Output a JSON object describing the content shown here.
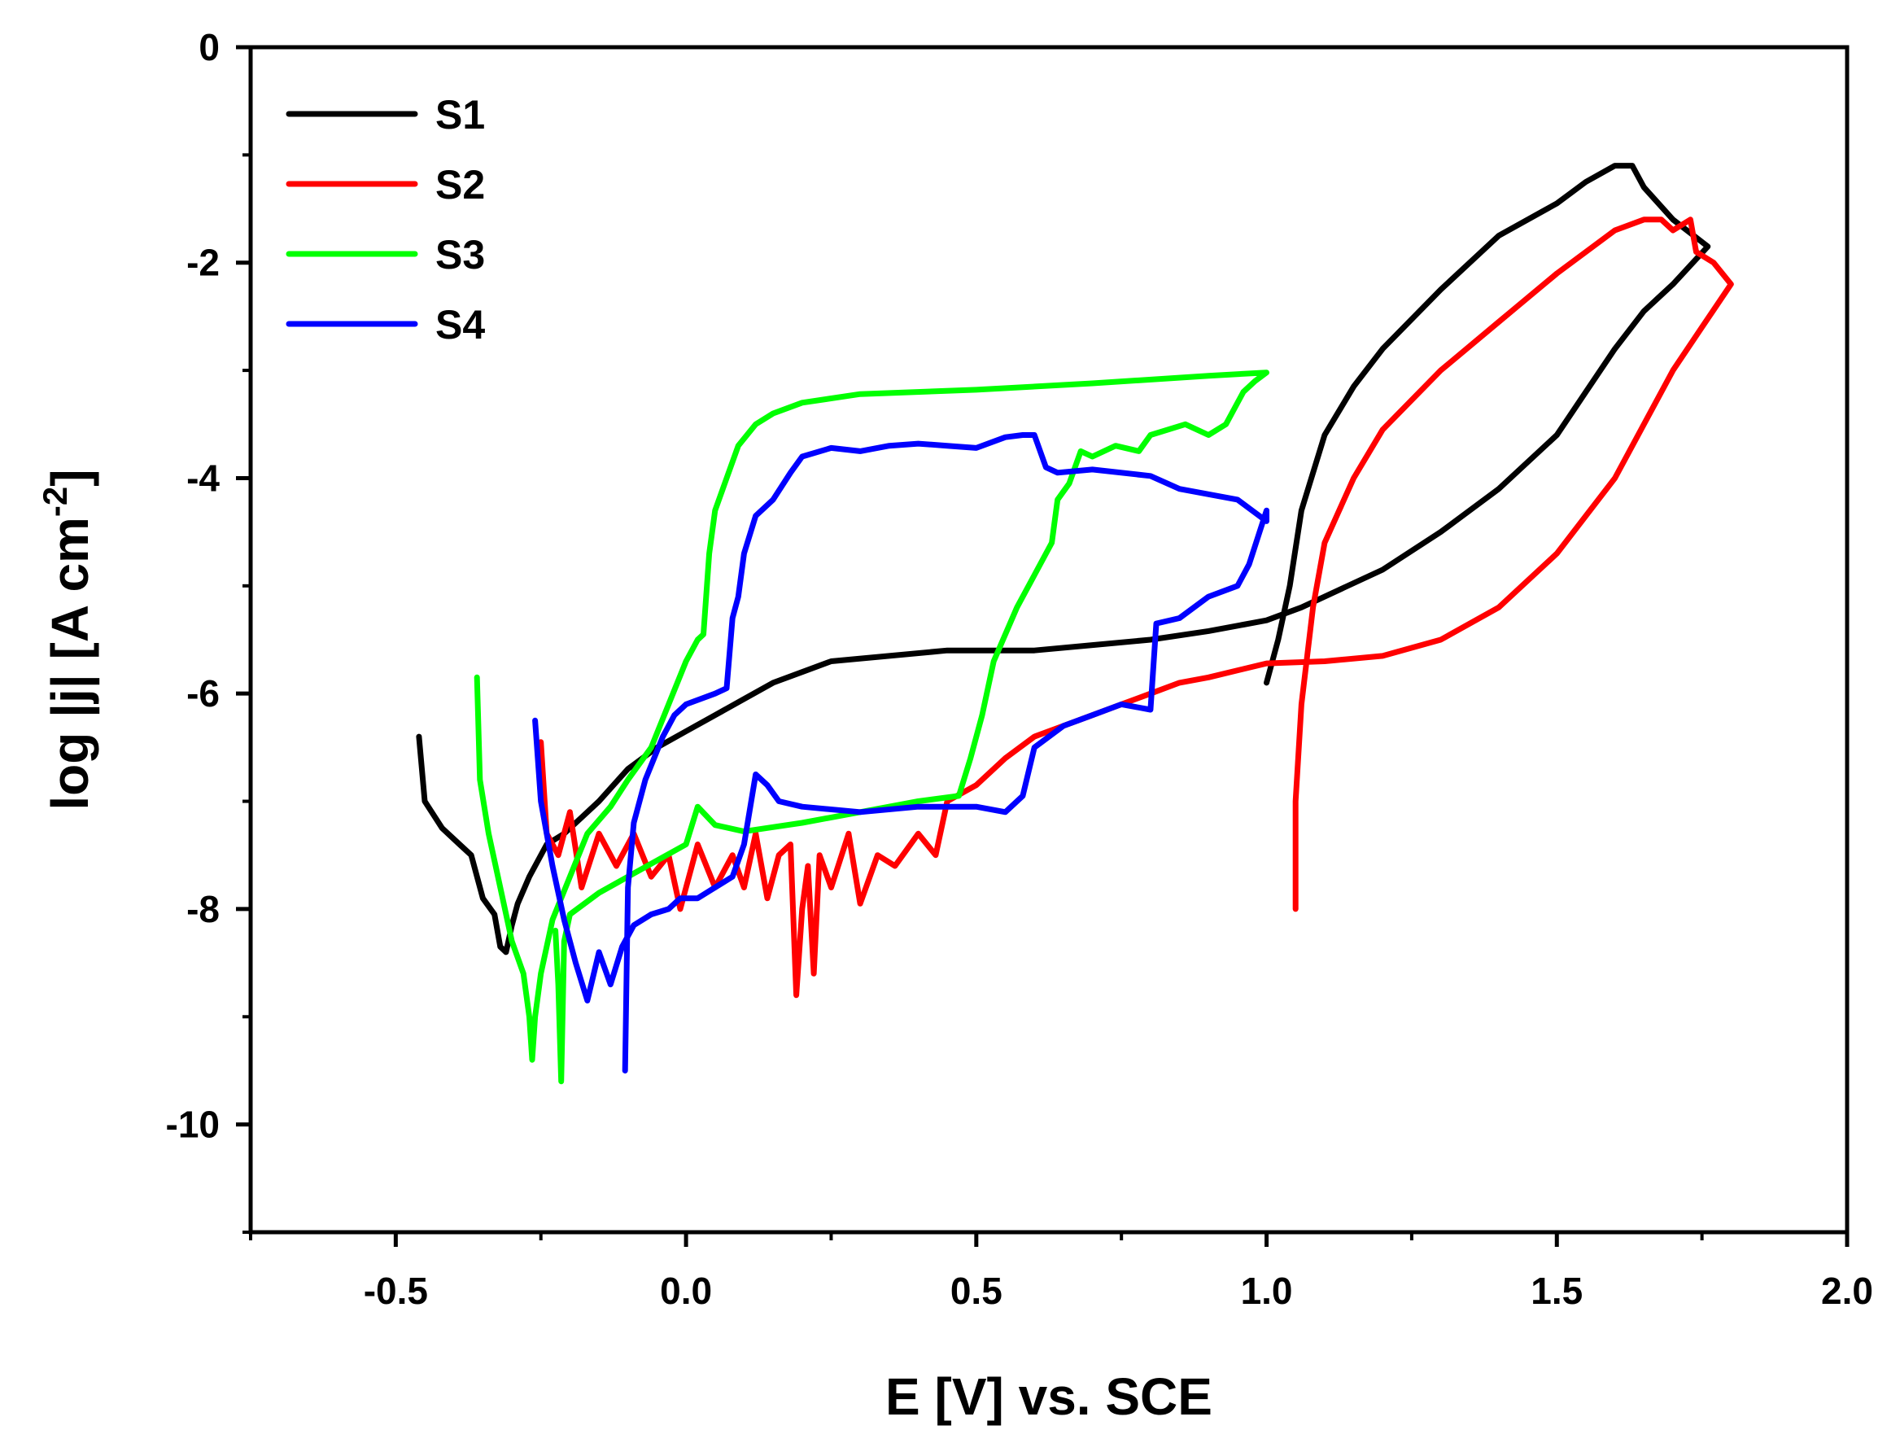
{
  "chart_data": {
    "type": "line",
    "title": "",
    "xlabel": "E [V] vs. SCE",
    "ylabel_main": "log |j| [A cm",
    "ylabel_sup": "-2",
    "ylabel_close": "]",
    "xlim": [
      -0.75,
      2.0
    ],
    "ylim": [
      -11,
      0
    ],
    "xticks": [
      -0.5,
      0.0,
      0.5,
      1.0,
      1.5,
      2.0
    ],
    "xtick_labels": [
      "-0.5",
      "0.0",
      "0.5",
      "1.0",
      "1.5",
      "2.0"
    ],
    "yticks": [
      0,
      -2,
      -4,
      -6,
      -8,
      -10
    ],
    "ytick_labels": [
      "0",
      "-2",
      "-4",
      "-6",
      "-8",
      "-10"
    ],
    "legend_position": "top-left",
    "series": [
      {
        "name": "S1",
        "color": "#000000",
        "points": [
          [
            -0.46,
            -6.4
          ],
          [
            -0.45,
            -7.0
          ],
          [
            -0.42,
            -7.25
          ],
          [
            -0.39,
            -7.4
          ],
          [
            -0.37,
            -7.5
          ],
          [
            -0.35,
            -7.9
          ],
          [
            -0.33,
            -8.05
          ],
          [
            -0.32,
            -8.35
          ],
          [
            -0.31,
            -8.4
          ],
          [
            -0.3,
            -8.15
          ],
          [
            -0.29,
            -7.95
          ],
          [
            -0.27,
            -7.7
          ],
          [
            -0.24,
            -7.4
          ],
          [
            -0.21,
            -7.3
          ],
          [
            -0.18,
            -7.15
          ],
          [
            -0.15,
            -7.0
          ],
          [
            -0.1,
            -6.7
          ],
          [
            -0.05,
            -6.5
          ],
          [
            0.0,
            -6.35
          ],
          [
            0.05,
            -6.2
          ],
          [
            0.1,
            -6.05
          ],
          [
            0.15,
            -5.9
          ],
          [
            0.2,
            -5.8
          ],
          [
            0.25,
            -5.7
          ],
          [
            0.35,
            -5.65
          ],
          [
            0.45,
            -5.6
          ],
          [
            0.6,
            -5.6
          ],
          [
            0.7,
            -5.55
          ],
          [
            0.8,
            -5.5
          ],
          [
            0.9,
            -5.42
          ],
          [
            0.96,
            -5.36
          ],
          [
            1.0,
            -5.32
          ],
          [
            1.06,
            -5.2
          ],
          [
            1.12,
            -5.05
          ],
          [
            1.2,
            -4.85
          ],
          [
            1.3,
            -4.5
          ],
          [
            1.4,
            -4.1
          ],
          [
            1.5,
            -3.6
          ],
          [
            1.55,
            -3.2
          ],
          [
            1.6,
            -2.8
          ],
          [
            1.65,
            -2.45
          ],
          [
            1.7,
            -2.2
          ],
          [
            1.76,
            -1.85
          ],
          [
            1.7,
            -1.6
          ],
          [
            1.65,
            -1.3
          ],
          [
            1.63,
            -1.1
          ],
          [
            1.6,
            -1.1
          ],
          [
            1.55,
            -1.25
          ],
          [
            1.5,
            -1.45
          ],
          [
            1.4,
            -1.75
          ],
          [
            1.3,
            -2.25
          ],
          [
            1.2,
            -2.8
          ],
          [
            1.15,
            -3.15
          ],
          [
            1.1,
            -3.6
          ],
          [
            1.06,
            -4.3
          ],
          [
            1.04,
            -5.0
          ],
          [
            1.02,
            -5.5
          ],
          [
            1.0,
            -5.9
          ]
        ]
      },
      {
        "name": "S2",
        "color": "#ff0000",
        "points": [
          [
            -0.25,
            -6.45
          ],
          [
            -0.24,
            -7.3
          ],
          [
            -0.22,
            -7.5
          ],
          [
            -0.2,
            -7.1
          ],
          [
            -0.18,
            -7.8
          ],
          [
            -0.15,
            -7.3
          ],
          [
            -0.12,
            -7.6
          ],
          [
            -0.09,
            -7.3
          ],
          [
            -0.06,
            -7.7
          ],
          [
            -0.03,
            -7.5
          ],
          [
            -0.01,
            -8.0
          ],
          [
            0.02,
            -7.4
          ],
          [
            0.05,
            -7.8
          ],
          [
            0.08,
            -7.5
          ],
          [
            0.1,
            -7.8
          ],
          [
            0.12,
            -7.3
          ],
          [
            0.14,
            -7.9
          ],
          [
            0.16,
            -7.5
          ],
          [
            0.18,
            -7.4
          ],
          [
            0.19,
            -8.8
          ],
          [
            0.2,
            -8.0
          ],
          [
            0.21,
            -7.6
          ],
          [
            0.22,
            -8.6
          ],
          [
            0.23,
            -7.5
          ],
          [
            0.25,
            -7.8
          ],
          [
            0.28,
            -7.3
          ],
          [
            0.3,
            -7.95
          ],
          [
            0.33,
            -7.5
          ],
          [
            0.36,
            -7.6
          ],
          [
            0.4,
            -7.3
          ],
          [
            0.43,
            -7.5
          ],
          [
            0.45,
            -7.0
          ],
          [
            0.5,
            -6.85
          ],
          [
            0.55,
            -6.6
          ],
          [
            0.6,
            -6.4
          ],
          [
            0.65,
            -6.3
          ],
          [
            0.7,
            -6.2
          ],
          [
            0.75,
            -6.1
          ],
          [
            0.8,
            -6.0
          ],
          [
            0.85,
            -5.9
          ],
          [
            0.9,
            -5.85
          ],
          [
            1.0,
            -5.72
          ],
          [
            1.1,
            -5.7
          ],
          [
            1.2,
            -5.65
          ],
          [
            1.3,
            -5.5
          ],
          [
            1.4,
            -5.2
          ],
          [
            1.5,
            -4.7
          ],
          [
            1.6,
            -4.0
          ],
          [
            1.7,
            -3.0
          ],
          [
            1.75,
            -2.6
          ],
          [
            1.8,
            -2.2
          ],
          [
            1.77,
            -2.0
          ],
          [
            1.74,
            -1.9
          ],
          [
            1.73,
            -1.6
          ],
          [
            1.7,
            -1.7
          ],
          [
            1.68,
            -1.6
          ],
          [
            1.65,
            -1.6
          ],
          [
            1.6,
            -1.7
          ],
          [
            1.5,
            -2.1
          ],
          [
            1.4,
            -2.55
          ],
          [
            1.3,
            -3.0
          ],
          [
            1.2,
            -3.55
          ],
          [
            1.15,
            -4.0
          ],
          [
            1.1,
            -4.6
          ],
          [
            1.08,
            -5.2
          ],
          [
            1.06,
            -6.1
          ],
          [
            1.05,
            -7.0
          ],
          [
            1.05,
            -8.0
          ]
        ]
      },
      {
        "name": "S3",
        "color": "#00ff00",
        "points": [
          [
            -0.36,
            -5.85
          ],
          [
            -0.355,
            -6.8
          ],
          [
            -0.34,
            -7.3
          ],
          [
            -0.32,
            -7.8
          ],
          [
            -0.3,
            -8.3
          ],
          [
            -0.28,
            -8.6
          ],
          [
            -0.27,
            -9.0
          ],
          [
            -0.265,
            -9.4
          ],
          [
            -0.26,
            -9.0
          ],
          [
            -0.25,
            -8.6
          ],
          [
            -0.23,
            -8.1
          ],
          [
            -0.2,
            -7.7
          ],
          [
            -0.17,
            -7.3
          ],
          [
            -0.13,
            -7.05
          ],
          [
            -0.1,
            -6.8
          ],
          [
            -0.06,
            -6.5
          ],
          [
            -0.03,
            -6.1
          ],
          [
            0.0,
            -5.7
          ],
          [
            0.02,
            -5.5
          ],
          [
            0.03,
            -5.45
          ],
          [
            0.04,
            -4.7
          ],
          [
            0.05,
            -4.3
          ],
          [
            0.07,
            -4.0
          ],
          [
            0.09,
            -3.7
          ],
          [
            0.12,
            -3.5
          ],
          [
            0.15,
            -3.4
          ],
          [
            0.2,
            -3.3
          ],
          [
            0.3,
            -3.22
          ],
          [
            0.5,
            -3.18
          ],
          [
            0.7,
            -3.12
          ],
          [
            0.9,
            -3.05
          ],
          [
            1.0,
            -3.02
          ],
          [
            0.98,
            -3.1
          ],
          [
            0.96,
            -3.2
          ],
          [
            0.93,
            -3.5
          ],
          [
            0.9,
            -3.6
          ],
          [
            0.86,
            -3.5
          ],
          [
            0.8,
            -3.6
          ],
          [
            0.78,
            -3.75
          ],
          [
            0.74,
            -3.7
          ],
          [
            0.7,
            -3.8
          ],
          [
            0.68,
            -3.75
          ],
          [
            0.66,
            -4.05
          ],
          [
            0.64,
            -4.2
          ],
          [
            0.63,
            -4.6
          ],
          [
            0.6,
            -4.9
          ],
          [
            0.57,
            -5.2
          ],
          [
            0.53,
            -5.7
          ],
          [
            0.51,
            -6.2
          ],
          [
            0.49,
            -6.6
          ],
          [
            0.47,
            -6.95
          ],
          [
            0.4,
            -7.0
          ],
          [
            0.3,
            -7.1
          ],
          [
            0.2,
            -7.2
          ],
          [
            0.1,
            -7.28
          ],
          [
            0.05,
            -7.22
          ],
          [
            0.02,
            -7.05
          ],
          [
            0.0,
            -7.4
          ],
          [
            -0.05,
            -7.55
          ],
          [
            -0.1,
            -7.7
          ],
          [
            -0.15,
            -7.85
          ],
          [
            -0.2,
            -8.05
          ],
          [
            -0.21,
            -8.3
          ],
          [
            -0.215,
            -9.6
          ],
          [
            -0.22,
            -8.7
          ],
          [
            -0.225,
            -8.2
          ]
        ]
      },
      {
        "name": "S4",
        "color": "#0000ff",
        "points": [
          [
            -0.26,
            -6.25
          ],
          [
            -0.25,
            -7.0
          ],
          [
            -0.23,
            -7.6
          ],
          [
            -0.21,
            -8.1
          ],
          [
            -0.19,
            -8.5
          ],
          [
            -0.17,
            -8.85
          ],
          [
            -0.15,
            -8.4
          ],
          [
            -0.13,
            -8.7
          ],
          [
            -0.11,
            -8.35
          ],
          [
            -0.09,
            -8.15
          ],
          [
            -0.06,
            -8.05
          ],
          [
            -0.03,
            -8.0
          ],
          [
            -0.01,
            -7.9
          ],
          [
            0.02,
            -7.9
          ],
          [
            0.05,
            -7.8
          ],
          [
            0.08,
            -7.7
          ],
          [
            0.1,
            -7.4
          ],
          [
            0.12,
            -6.75
          ],
          [
            0.14,
            -6.85
          ],
          [
            0.16,
            -7.0
          ],
          [
            0.2,
            -7.05
          ],
          [
            0.3,
            -7.1
          ],
          [
            0.4,
            -7.05
          ],
          [
            0.5,
            -7.05
          ],
          [
            0.55,
            -7.1
          ],
          [
            0.58,
            -6.95
          ],
          [
            0.6,
            -6.5
          ],
          [
            0.65,
            -6.3
          ],
          [
            0.7,
            -6.2
          ],
          [
            0.75,
            -6.1
          ],
          [
            0.8,
            -6.15
          ],
          [
            0.81,
            -5.35
          ],
          [
            0.85,
            -5.3
          ],
          [
            0.9,
            -5.1
          ],
          [
            0.95,
            -5.0
          ],
          [
            0.97,
            -4.8
          ],
          [
            1.0,
            -4.3
          ],
          [
            1.0,
            -4.4
          ],
          [
            0.95,
            -4.2
          ],
          [
            0.9,
            -4.15
          ],
          [
            0.85,
            -4.1
          ],
          [
            0.8,
            -3.98
          ],
          [
            0.7,
            -3.92
          ],
          [
            0.64,
            -3.95
          ],
          [
            0.62,
            -3.9
          ],
          [
            0.6,
            -3.6
          ],
          [
            0.58,
            -3.6
          ],
          [
            0.55,
            -3.62
          ],
          [
            0.5,
            -3.72
          ],
          [
            0.45,
            -3.7
          ],
          [
            0.4,
            -3.68
          ],
          [
            0.35,
            -3.7
          ],
          [
            0.3,
            -3.75
          ],
          [
            0.25,
            -3.72
          ],
          [
            0.2,
            -3.8
          ],
          [
            0.18,
            -3.95
          ],
          [
            0.15,
            -4.2
          ],
          [
            0.12,
            -4.35
          ],
          [
            0.1,
            -4.7
          ],
          [
            0.09,
            -5.1
          ],
          [
            0.08,
            -5.3
          ],
          [
            0.07,
            -5.95
          ],
          [
            0.05,
            -6.0
          ],
          [
            0.0,
            -6.1
          ],
          [
            -0.02,
            -6.2
          ],
          [
            -0.04,
            -6.4
          ],
          [
            -0.07,
            -6.8
          ],
          [
            -0.09,
            -7.2
          ],
          [
            -0.1,
            -7.8
          ],
          [
            -0.105,
            -9.5
          ]
        ]
      }
    ]
  }
}
